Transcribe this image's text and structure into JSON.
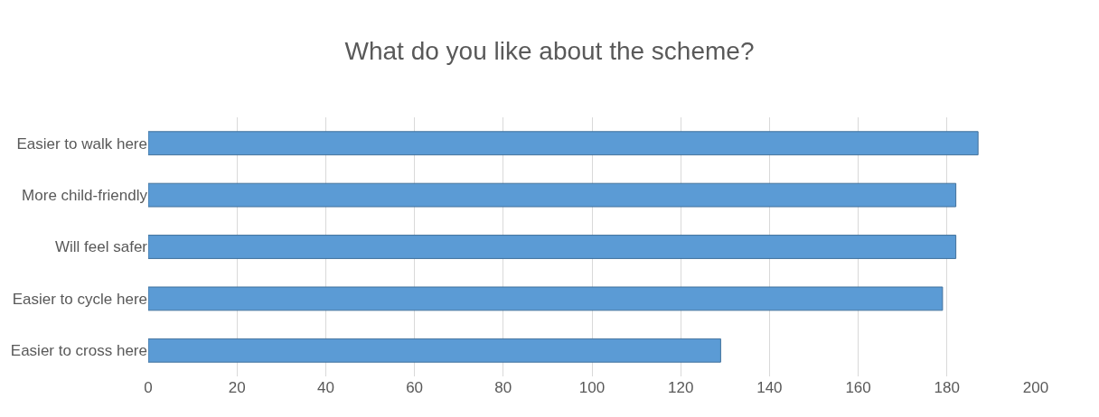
{
  "chart_data": {
    "type": "bar",
    "orientation": "horizontal",
    "title": "What do you like about the scheme?",
    "categories": [
      "Easier to walk here",
      "More child-friendly",
      "Will feel safer",
      "Easier to cycle here",
      "Easier to cross here"
    ],
    "values": [
      187,
      182,
      182,
      179,
      129
    ],
    "color": "#5b9bd5",
    "xlim": [
      0,
      200
    ],
    "xticks": [
      0,
      20,
      40,
      60,
      80,
      100,
      120,
      140,
      160,
      180,
      200
    ],
    "grid": "x"
  }
}
